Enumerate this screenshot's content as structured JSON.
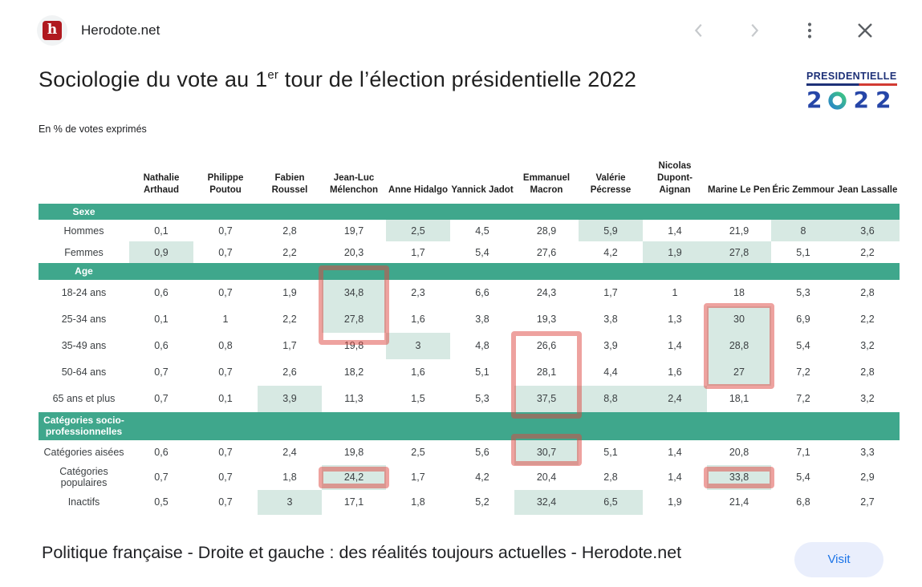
{
  "topbar": {
    "site_name": "Herodote.net",
    "favicon_letter": "h"
  },
  "page": {
    "title_prefix": "Sociologie du vote au 1",
    "title_sup": "er",
    "title_suffix": " tour de l’élection présidentielle 2022",
    "subtitle": "En % de votes exprimés"
  },
  "logo": {
    "title": "PRESIDENTIELLE",
    "digits": [
      "2",
      "0",
      "2",
      "2"
    ]
  },
  "colors": {
    "section_band": "#3fa78c",
    "cell_highlight": "#d7e9e3",
    "annotation_red": "rgba(222,70,64,0.5)",
    "logo_navy": "#1e3178",
    "logo_blue": "#2646a8",
    "logo_underline_red": "#d23b33",
    "favicon_red": "#b0191f",
    "visit_bg": "#e9eefc",
    "visit_text": "#1a73e8"
  },
  "table": {
    "candidates": [
      "Nathalie Arthaud",
      "Philippe Poutou",
      "Fabien Roussel",
      "Jean-Luc Mélenchon",
      "Anne Hidalgo",
      "Yannick Jadot",
      "Emmanuel Macron",
      "Valérie Pécresse",
      "Nicolas Dupont-Aignan",
      "Marine Le Pen",
      "Éric Zemmour",
      "Jean Lassalle"
    ],
    "sections": [
      {
        "label": "Sexe",
        "rows": [
          {
            "label": "Hommes",
            "values": [
              "0,1",
              "0,7",
              "2,8",
              "19,7",
              "2,5",
              "4,5",
              "28,9",
              "5,9",
              "1,4",
              "21,9",
              "8",
              "3,6"
            ],
            "highlights": [
              4,
              7,
              10,
              11
            ]
          },
          {
            "label": "Femmes",
            "values": [
              "0,9",
              "0,7",
              "2,2",
              "20,3",
              "1,7",
              "5,4",
              "27,6",
              "4,2",
              "1,9",
              "27,8",
              "5,1",
              "2,2"
            ],
            "highlights": [
              0,
              8,
              9
            ]
          }
        ]
      },
      {
        "label": "Age",
        "rows": [
          {
            "label": "18-24 ans",
            "values": [
              "0,6",
              "0,7",
              "1,9",
              "34,8",
              "2,3",
              "6,6",
              "24,3",
              "1,7",
              "1",
              "18",
              "5,3",
              "2,8"
            ],
            "highlights": [
              3
            ]
          },
          {
            "label": "25-34 ans",
            "values": [
              "0,1",
              "1",
              "2,2",
              "27,8",
              "1,6",
              "3,8",
              "19,3",
              "3,8",
              "1,3",
              "30",
              "6,9",
              "2,2"
            ],
            "highlights": [
              3,
              9
            ]
          },
          {
            "label": "35-49 ans",
            "values": [
              "0,6",
              "0,8",
              "1,7",
              "19,8",
              "3",
              "4,8",
              "26,6",
              "3,9",
              "1,4",
              "28,8",
              "5,4",
              "3,2"
            ],
            "highlights": [
              4,
              9
            ]
          },
          {
            "label": "50-64 ans",
            "values": [
              "0,7",
              "0,7",
              "2,6",
              "18,2",
              "1,6",
              "5,1",
              "28,1",
              "4,4",
              "1,6",
              "27",
              "7,2",
              "2,8"
            ],
            "highlights": [
              9
            ]
          },
          {
            "label": "65 ans et plus",
            "values": [
              "0,7",
              "0,1",
              "3,9",
              "11,3",
              "1,5",
              "5,3",
              "37,5",
              "8,8",
              "2,4",
              "18,1",
              "7,2",
              "3,2"
            ],
            "highlights": [
              2,
              6,
              7,
              8
            ]
          }
        ]
      },
      {
        "label": "Catégories socio-professionnelles",
        "rows": [
          {
            "label": "Catégories aisées",
            "values": [
              "0,6",
              "0,7",
              "2,4",
              "19,8",
              "2,5",
              "5,6",
              "30,7",
              "5,1",
              "1,4",
              "20,8",
              "7,1",
              "3,3"
            ],
            "highlights": [
              6
            ]
          },
          {
            "label": "Catégories populaires",
            "values": [
              "0,7",
              "0,7",
              "1,8",
              "24,2",
              "1,7",
              "4,2",
              "20,4",
              "2,8",
              "1,4",
              "33,8",
              "5,4",
              "2,9"
            ],
            "highlights": [
              3,
              9
            ]
          },
          {
            "label": "Inactifs",
            "values": [
              "0,5",
              "0,7",
              "3",
              "17,1",
              "1,8",
              "5,2",
              "32,4",
              "6,5",
              "1,9",
              "21,4",
              "6,8",
              "2,7"
            ],
            "highlights": [
              2,
              6,
              7
            ]
          }
        ]
      }
    ],
    "annotations": [
      {
        "col": 3,
        "sec": 1,
        "row_start": 0,
        "row_end": 1,
        "top_ext": 18,
        "bottom_ext": 15
      },
      {
        "col": 9,
        "sec": 1,
        "row_start": 1,
        "row_end": 3,
        "top_ext": 4,
        "bottom_ext": 4
      },
      {
        "col": 6,
        "sec": 1,
        "row_start": 2,
        "row_end": 4,
        "top_ext": 2,
        "bottom_ext": 8
      },
      {
        "col": 6,
        "sec": 2,
        "row_start": 0,
        "row_end": 0,
        "top_ext": 8,
        "bottom_ext": 1
      },
      {
        "col": 3,
        "sec": 2,
        "row_start": 1,
        "row_end": 1,
        "top_ext": -2,
        "bottom_ext": -2
      },
      {
        "col": 9,
        "sec": 2,
        "row_start": 1,
        "row_end": 1,
        "top_ext": -2,
        "bottom_ext": -2
      }
    ]
  },
  "footer": {
    "caption": "Politique française - Droite et gauche : des réalités toujours actuelles - Herodote.net",
    "visit_label": "Visit"
  }
}
